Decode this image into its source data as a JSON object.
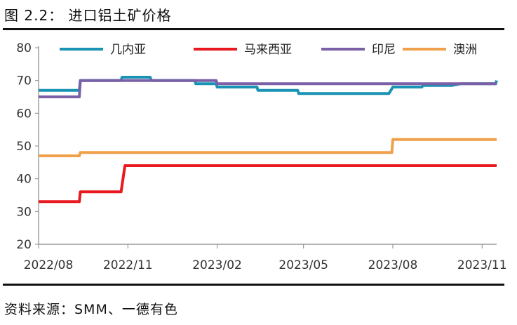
{
  "figure": {
    "title": "图 2.2：  进口铝土矿价格",
    "source": "资料来源：SMM、一德有色"
  },
  "chart_data": {
    "type": "line",
    "title": "进口铝土矿价格",
    "xlabel": "",
    "ylabel": "",
    "ylim": [
      20,
      80
    ],
    "yticks": [
      20,
      30,
      40,
      50,
      60,
      70,
      80
    ],
    "x_range": [
      "2022/08",
      "2023/11"
    ],
    "x_tick_labels": [
      "2022/08",
      "2022/11",
      "2023/02",
      "2023/05",
      "2023/08",
      "2023/11"
    ],
    "grid": false,
    "legend_position": "top",
    "series": [
      {
        "name": "几内亚",
        "color": "#1a93b4",
        "points": [
          [
            "2022-08-01",
            67
          ],
          [
            "2022-09-12",
            67
          ],
          [
            "2022-09-13",
            70
          ],
          [
            "2022-10-25",
            70
          ],
          [
            "2022-10-26",
            71
          ],
          [
            "2022-11-24",
            71
          ],
          [
            "2022-11-25",
            70
          ],
          [
            "2023-01-09",
            70
          ],
          [
            "2023-01-10",
            69
          ],
          [
            "2023-01-31",
            69
          ],
          [
            "2023-02-01",
            68
          ],
          [
            "2023-03-14",
            68
          ],
          [
            "2023-03-15",
            67
          ],
          [
            "2023-04-25",
            67
          ],
          [
            "2023-04-26",
            66
          ],
          [
            "2023-07-28",
            66
          ],
          [
            "2023-08-01",
            68
          ],
          [
            "2023-08-31",
            68
          ],
          [
            "2023-09-01",
            68.5
          ],
          [
            "2023-10-01",
            68.5
          ],
          [
            "2023-10-10",
            69
          ],
          [
            "2023-11-15",
            69
          ],
          [
            "2023-11-16",
            70
          ]
        ]
      },
      {
        "name": "马来西亚",
        "color": "#e8191f",
        "points": [
          [
            "2022-08-01",
            33
          ],
          [
            "2022-09-12",
            33
          ],
          [
            "2022-09-13",
            36
          ],
          [
            "2022-10-25",
            36
          ],
          [
            "2022-10-29",
            44
          ],
          [
            "2023-11-16",
            44
          ]
        ]
      },
      {
        "name": "印尼",
        "color": "#7b60a8",
        "points": [
          [
            "2022-08-01",
            65
          ],
          [
            "2022-09-12",
            65
          ],
          [
            "2022-09-13",
            70
          ],
          [
            "2023-01-31",
            70
          ],
          [
            "2023-02-01",
            69
          ],
          [
            "2023-11-16",
            69
          ]
        ]
      },
      {
        "name": "澳洲",
        "color": "#f0a04b",
        "points": [
          [
            "2022-08-01",
            47
          ],
          [
            "2022-09-12",
            47
          ],
          [
            "2022-09-13",
            48
          ],
          [
            "2023-07-31",
            48
          ],
          [
            "2023-08-01",
            52
          ],
          [
            "2023-11-16",
            52
          ]
        ]
      }
    ]
  }
}
